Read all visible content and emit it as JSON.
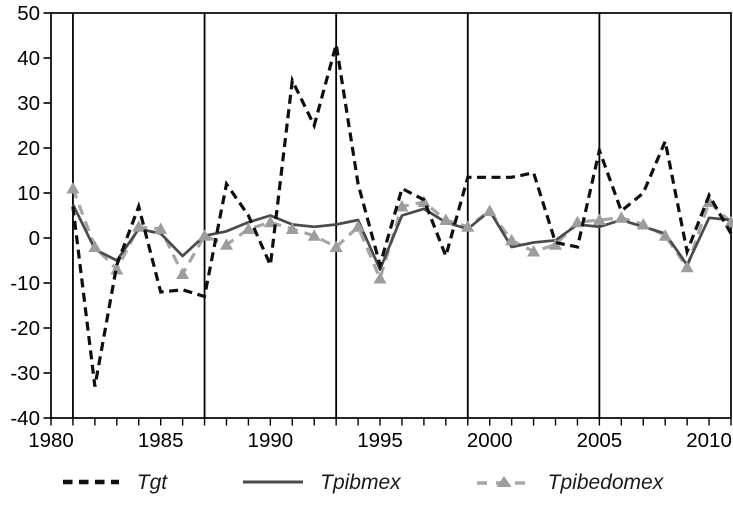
{
  "chart_data": {
    "type": "line",
    "title": "",
    "xlabel": "",
    "ylabel": "",
    "x": [
      1981,
      1982,
      1983,
      1984,
      1985,
      1986,
      1987,
      1988,
      1989,
      1990,
      1991,
      1992,
      1993,
      1994,
      1995,
      1996,
      1997,
      1998,
      1999,
      2000,
      2001,
      2002,
      2003,
      2004,
      2005,
      2006,
      2007,
      2008,
      2009,
      2010,
      2011
    ],
    "series": [
      {
        "name": "Tgt",
        "style": "dashed",
        "color": "#0f0f0f",
        "values": [
          7,
          -33,
          -6,
          7,
          -12,
          -11.5,
          -13,
          12,
          5,
          -6,
          35,
          25,
          43,
          12,
          -6,
          11,
          8.5,
          -4,
          13.5,
          13.5,
          13.5,
          14.5,
          -1,
          -2,
          19.5,
          6,
          10,
          21.5,
          -3,
          9.5,
          1
        ]
      },
      {
        "name": "Tpibmex",
        "style": "solid",
        "color": "#4a4a4a",
        "values": [
          7.5,
          -2.5,
          -5,
          2,
          1,
          -4,
          0.5,
          1.5,
          3.5,
          5,
          3,
          2.5,
          3,
          4,
          -7,
          5,
          6.5,
          3.5,
          2,
          6,
          -2,
          -1,
          -0.5,
          3,
          2.5,
          4,
          2.5,
          1,
          -6,
          4.5,
          4
        ]
      },
      {
        "name": "Tpibedomex",
        "style": "dashed-triangle",
        "color": "#a6a6a6",
        "marker_color": "#9d9d9d",
        "values": [
          11,
          -2,
          -7,
          2.5,
          2,
          -8,
          0.5,
          -1.5,
          2,
          3.5,
          2,
          0.5,
          -2,
          2.5,
          -9,
          7,
          8,
          4,
          2.5,
          6,
          -0.5,
          -3,
          -1.5,
          3.5,
          4,
          4.5,
          3,
          0.5,
          -6.5,
          8,
          3.5
        ]
      }
    ],
    "xlim": [
      1980,
      2011
    ],
    "ylim": [
      -40,
      50
    ],
    "yticks": [
      50,
      40,
      30,
      20,
      10,
      0,
      -10,
      -20,
      -30,
      -40
    ],
    "xtick_labels": [
      1980,
      1985,
      1990,
      1995,
      2000,
      2005,
      2010
    ],
    "xtick_minor_step": 1,
    "vertical_lines": [
      1981,
      1987,
      1993,
      1999,
      2005
    ],
    "grid": "off",
    "frame": "box",
    "legend_position": "bottom",
    "axis_color": "#000000"
  }
}
